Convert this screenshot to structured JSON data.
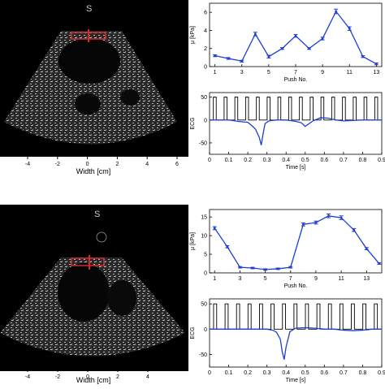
{
  "colors": {
    "series": "#1f3fd1",
    "ecg": "#000000",
    "echo_bg": "#000000",
    "marker": "#d42a2a"
  },
  "top_echo": {
    "marker_label": "S",
    "xlabel": "Width [cm]",
    "xticks": [
      "-4",
      "-2",
      "0",
      "2",
      "4",
      "6"
    ]
  },
  "bottom_echo": {
    "marker_label": "S",
    "xlabel": "Width [cm]",
    "xticks": [
      "-4",
      "-2",
      "0",
      "2",
      "4"
    ]
  },
  "chart_data": [
    {
      "id": "top-shear",
      "type": "line",
      "ylabel": "μ [kPa]",
      "xlabel": "Push No.",
      "xlim": [
        0.6,
        13.4
      ],
      "ylim": [
        0,
        7
      ],
      "xticks": [
        1,
        3,
        5,
        7,
        9,
        11,
        13
      ],
      "yticks": [
        0,
        2,
        4,
        6
      ],
      "x": [
        1,
        2,
        3,
        4,
        5,
        6,
        7,
        8,
        9,
        10,
        11,
        12,
        13
      ],
      "values": [
        1.2,
        0.9,
        0.6,
        3.6,
        1.1,
        2.0,
        3.4,
        2.0,
        3.1,
        6.1,
        4.2,
        1.1,
        0.3
      ],
      "errors": [
        0.1,
        0.1,
        0.1,
        0.2,
        0.15,
        0.1,
        0.15,
        0.1,
        0.15,
        0.25,
        0.2,
        0.1,
        0.1
      ]
    },
    {
      "id": "top-ecg",
      "type": "line",
      "ylabel": "ECG",
      "xlabel": "Time [s]",
      "xlim": [
        0,
        0.9
      ],
      "ylim": [
        -75,
        60
      ],
      "xticks": [
        "0",
        "0.1",
        "0.2",
        "0.3",
        "0.4",
        "0.5",
        "0.6",
        "0.7",
        "0.8",
        "0.9"
      ],
      "yticks": [
        "50",
        "0",
        "-50"
      ],
      "pulse_count": 16,
      "pulse_level": 50,
      "ecg_x": [
        0,
        0.05,
        0.1,
        0.15,
        0.2,
        0.22,
        0.24,
        0.26,
        0.27,
        0.28,
        0.29,
        0.31,
        0.35,
        0.4,
        0.45,
        0.48,
        0.5,
        0.52,
        0.54,
        0.58,
        0.62,
        0.66,
        0.7,
        0.75,
        0.8,
        0.85,
        0.9
      ],
      "ecg_y": [
        0,
        0,
        0,
        -3,
        -5,
        -12,
        -20,
        -38,
        -55,
        -30,
        -8,
        -2,
        0,
        0,
        -3,
        -6,
        -14,
        -8,
        -2,
        5,
        4,
        0,
        -2,
        -1,
        0,
        0,
        0
      ]
    },
    {
      "id": "bottom-shear",
      "type": "line",
      "ylabel": "μ [kPa]",
      "xlabel": "Push No.",
      "xlim": [
        0.6,
        14.2
      ],
      "ylim": [
        0,
        17
      ],
      "xticks": [
        1,
        3,
        5,
        7,
        9,
        11,
        13
      ],
      "yticks": [
        0,
        5,
        10,
        15
      ],
      "x": [
        1,
        2,
        3,
        4,
        5,
        6,
        7,
        8,
        9,
        10,
        11,
        12,
        13,
        14
      ],
      "values": [
        12.0,
        7.0,
        1.5,
        1.3,
        0.9,
        1.1,
        1.5,
        13.0,
        13.5,
        15.3,
        14.8,
        11.5,
        6.5,
        2.5
      ],
      "errors": [
        0.4,
        0.3,
        0.2,
        0.2,
        0.2,
        0.2,
        0.2,
        0.4,
        0.4,
        0.5,
        0.5,
        0.4,
        0.3,
        0.2
      ]
    },
    {
      "id": "bottom-ecg",
      "type": "line",
      "ylabel": "ECG",
      "xlabel": "Time [s]",
      "xlim": [
        0,
        0.9
      ],
      "ylim": [
        -75,
        60
      ],
      "xticks": [
        "0",
        "0.1",
        "0.2",
        "0.3",
        "0.4",
        "0.5",
        "0.6",
        "0.7",
        "0.8",
        "0.9"
      ],
      "yticks": [
        "50",
        "0",
        "-50"
      ],
      "pulse_count": 15,
      "pulse_level": 50,
      "ecg_x": [
        0,
        0.05,
        0.1,
        0.15,
        0.2,
        0.25,
        0.3,
        0.33,
        0.35,
        0.37,
        0.38,
        0.39,
        0.4,
        0.42,
        0.45,
        0.5,
        0.55,
        0.6,
        0.65,
        0.7,
        0.75,
        0.8,
        0.85,
        0.9
      ],
      "ecg_y": [
        0,
        0,
        0,
        0,
        0,
        0,
        0,
        -2,
        -6,
        -20,
        -45,
        -60,
        -35,
        -5,
        2,
        3,
        2,
        0,
        0,
        -2,
        -3,
        -2,
        0,
        0
      ]
    }
  ]
}
